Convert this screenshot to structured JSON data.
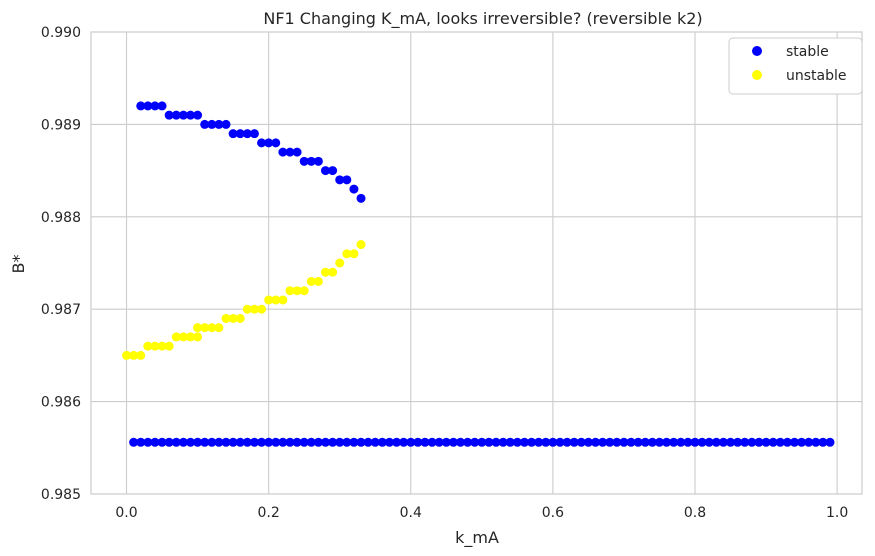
{
  "chart_data": {
    "type": "scatter",
    "title": "NF1 Changing K_mA, looks irreversible? (reversible k2)",
    "xlabel": "k_mA",
    "ylabel": "B*",
    "xlim": [
      -0.05,
      1.035
    ],
    "ylim": [
      0.985,
      0.99
    ],
    "xticks": [
      0.0,
      0.2,
      0.4,
      0.6,
      0.8,
      1.0
    ],
    "xtick_labels": [
      "0.0",
      "0.2",
      "0.4",
      "0.6",
      "0.8",
      "1.0"
    ],
    "yticks": [
      0.985,
      0.986,
      0.987,
      0.988,
      0.989,
      0.99
    ],
    "ytick_labels": [
      "0.985",
      "0.986",
      "0.987",
      "0.988",
      "0.989",
      "0.990"
    ],
    "grid": true,
    "legend_position": "top-right",
    "series": [
      {
        "name": "stable",
        "color": "#0000ff",
        "points": [
          [
            0.02,
            0.9892
          ],
          [
            0.03,
            0.9892
          ],
          [
            0.04,
            0.9892
          ],
          [
            0.05,
            0.9892
          ],
          [
            0.06,
            0.9891
          ],
          [
            0.07,
            0.9891
          ],
          [
            0.08,
            0.9891
          ],
          [
            0.09,
            0.9891
          ],
          [
            0.1,
            0.9891
          ],
          [
            0.11,
            0.989
          ],
          [
            0.12,
            0.989
          ],
          [
            0.13,
            0.989
          ],
          [
            0.14,
            0.989
          ],
          [
            0.15,
            0.9889
          ],
          [
            0.16,
            0.9889
          ],
          [
            0.17,
            0.9889
          ],
          [
            0.18,
            0.9889
          ],
          [
            0.19,
            0.9888
          ],
          [
            0.2,
            0.9888
          ],
          [
            0.21,
            0.9888
          ],
          [
            0.22,
            0.9887
          ],
          [
            0.23,
            0.9887
          ],
          [
            0.24,
            0.9887
          ],
          [
            0.25,
            0.9886
          ],
          [
            0.26,
            0.9886
          ],
          [
            0.27,
            0.9886
          ],
          [
            0.28,
            0.9885
          ],
          [
            0.29,
            0.9885
          ],
          [
            0.3,
            0.9884
          ],
          [
            0.31,
            0.9884
          ],
          [
            0.32,
            0.9883
          ],
          [
            0.33,
            0.9882
          ],
          [
            0.01,
            0.98556
          ],
          [
            0.02,
            0.98556
          ],
          [
            0.03,
            0.98556
          ],
          [
            0.04,
            0.98556
          ],
          [
            0.05,
            0.98556
          ],
          [
            0.06,
            0.98556
          ],
          [
            0.07,
            0.98556
          ],
          [
            0.08,
            0.98556
          ],
          [
            0.09,
            0.98556
          ],
          [
            0.1,
            0.98556
          ],
          [
            0.11,
            0.98556
          ],
          [
            0.12,
            0.98556
          ],
          [
            0.13,
            0.98556
          ],
          [
            0.14,
            0.98556
          ],
          [
            0.15,
            0.98556
          ],
          [
            0.16,
            0.98556
          ],
          [
            0.17,
            0.98556
          ],
          [
            0.18,
            0.98556
          ],
          [
            0.19,
            0.98556
          ],
          [
            0.2,
            0.98556
          ],
          [
            0.21,
            0.98556
          ],
          [
            0.22,
            0.98556
          ],
          [
            0.23,
            0.98556
          ],
          [
            0.24,
            0.98556
          ],
          [
            0.25,
            0.98556
          ],
          [
            0.26,
            0.98556
          ],
          [
            0.27,
            0.98556
          ],
          [
            0.28,
            0.98556
          ],
          [
            0.29,
            0.98556
          ],
          [
            0.3,
            0.98556
          ],
          [
            0.31,
            0.98556
          ],
          [
            0.32,
            0.98556
          ],
          [
            0.33,
            0.98556
          ],
          [
            0.34,
            0.98556
          ],
          [
            0.35,
            0.98556
          ],
          [
            0.36,
            0.98556
          ],
          [
            0.37,
            0.98556
          ],
          [
            0.38,
            0.98556
          ],
          [
            0.39,
            0.98556
          ],
          [
            0.4,
            0.98556
          ],
          [
            0.41,
            0.98556
          ],
          [
            0.42,
            0.98556
          ],
          [
            0.43,
            0.98556
          ],
          [
            0.44,
            0.98556
          ],
          [
            0.45,
            0.98556
          ],
          [
            0.46,
            0.98556
          ],
          [
            0.47,
            0.98556
          ],
          [
            0.48,
            0.98556
          ],
          [
            0.49,
            0.98556
          ],
          [
            0.5,
            0.98556
          ],
          [
            0.51,
            0.98556
          ],
          [
            0.52,
            0.98556
          ],
          [
            0.53,
            0.98556
          ],
          [
            0.54,
            0.98556
          ],
          [
            0.55,
            0.98556
          ],
          [
            0.56,
            0.98556
          ],
          [
            0.57,
            0.98556
          ],
          [
            0.58,
            0.98556
          ],
          [
            0.59,
            0.98556
          ],
          [
            0.6,
            0.98556
          ],
          [
            0.61,
            0.98556
          ],
          [
            0.62,
            0.98556
          ],
          [
            0.63,
            0.98556
          ],
          [
            0.64,
            0.98556
          ],
          [
            0.65,
            0.98556
          ],
          [
            0.66,
            0.98556
          ],
          [
            0.67,
            0.98556
          ],
          [
            0.68,
            0.98556
          ],
          [
            0.69,
            0.98556
          ],
          [
            0.7,
            0.98556
          ],
          [
            0.71,
            0.98556
          ],
          [
            0.72,
            0.98556
          ],
          [
            0.73,
            0.98556
          ],
          [
            0.74,
            0.98556
          ],
          [
            0.75,
            0.98556
          ],
          [
            0.76,
            0.98556
          ],
          [
            0.77,
            0.98556
          ],
          [
            0.78,
            0.98556
          ],
          [
            0.79,
            0.98556
          ],
          [
            0.8,
            0.98556
          ],
          [
            0.81,
            0.98556
          ],
          [
            0.82,
            0.98556
          ],
          [
            0.83,
            0.98556
          ],
          [
            0.84,
            0.98556
          ],
          [
            0.85,
            0.98556
          ],
          [
            0.86,
            0.98556
          ],
          [
            0.87,
            0.98556
          ],
          [
            0.88,
            0.98556
          ],
          [
            0.89,
            0.98556
          ],
          [
            0.9,
            0.98556
          ],
          [
            0.91,
            0.98556
          ],
          [
            0.92,
            0.98556
          ],
          [
            0.93,
            0.98556
          ],
          [
            0.94,
            0.98556
          ],
          [
            0.95,
            0.98556
          ],
          [
            0.96,
            0.98556
          ],
          [
            0.97,
            0.98556
          ],
          [
            0.98,
            0.98556
          ],
          [
            0.99,
            0.98556
          ]
        ]
      },
      {
        "name": "unstable",
        "color": "#ffff00",
        "points": [
          [
            0.0,
            0.9865
          ],
          [
            0.01,
            0.9865
          ],
          [
            0.02,
            0.9865
          ],
          [
            0.03,
            0.9866
          ],
          [
            0.04,
            0.9866
          ],
          [
            0.05,
            0.9866
          ],
          [
            0.06,
            0.9866
          ],
          [
            0.07,
            0.9867
          ],
          [
            0.08,
            0.9867
          ],
          [
            0.09,
            0.9867
          ],
          [
            0.1,
            0.9867
          ],
          [
            0.1,
            0.9868
          ],
          [
            0.11,
            0.9868
          ],
          [
            0.12,
            0.9868
          ],
          [
            0.13,
            0.9868
          ],
          [
            0.14,
            0.9869
          ],
          [
            0.15,
            0.9869
          ],
          [
            0.16,
            0.9869
          ],
          [
            0.17,
            0.987
          ],
          [
            0.18,
            0.987
          ],
          [
            0.19,
            0.987
          ],
          [
            0.2,
            0.9871
          ],
          [
            0.21,
            0.9871
          ],
          [
            0.22,
            0.9871
          ],
          [
            0.23,
            0.9872
          ],
          [
            0.24,
            0.9872
          ],
          [
            0.25,
            0.9872
          ],
          [
            0.26,
            0.9873
          ],
          [
            0.27,
            0.9873
          ],
          [
            0.28,
            0.9874
          ],
          [
            0.29,
            0.9874
          ],
          [
            0.3,
            0.9875
          ],
          [
            0.31,
            0.9876
          ],
          [
            0.32,
            0.9876
          ],
          [
            0.33,
            0.9877
          ]
        ]
      }
    ]
  }
}
